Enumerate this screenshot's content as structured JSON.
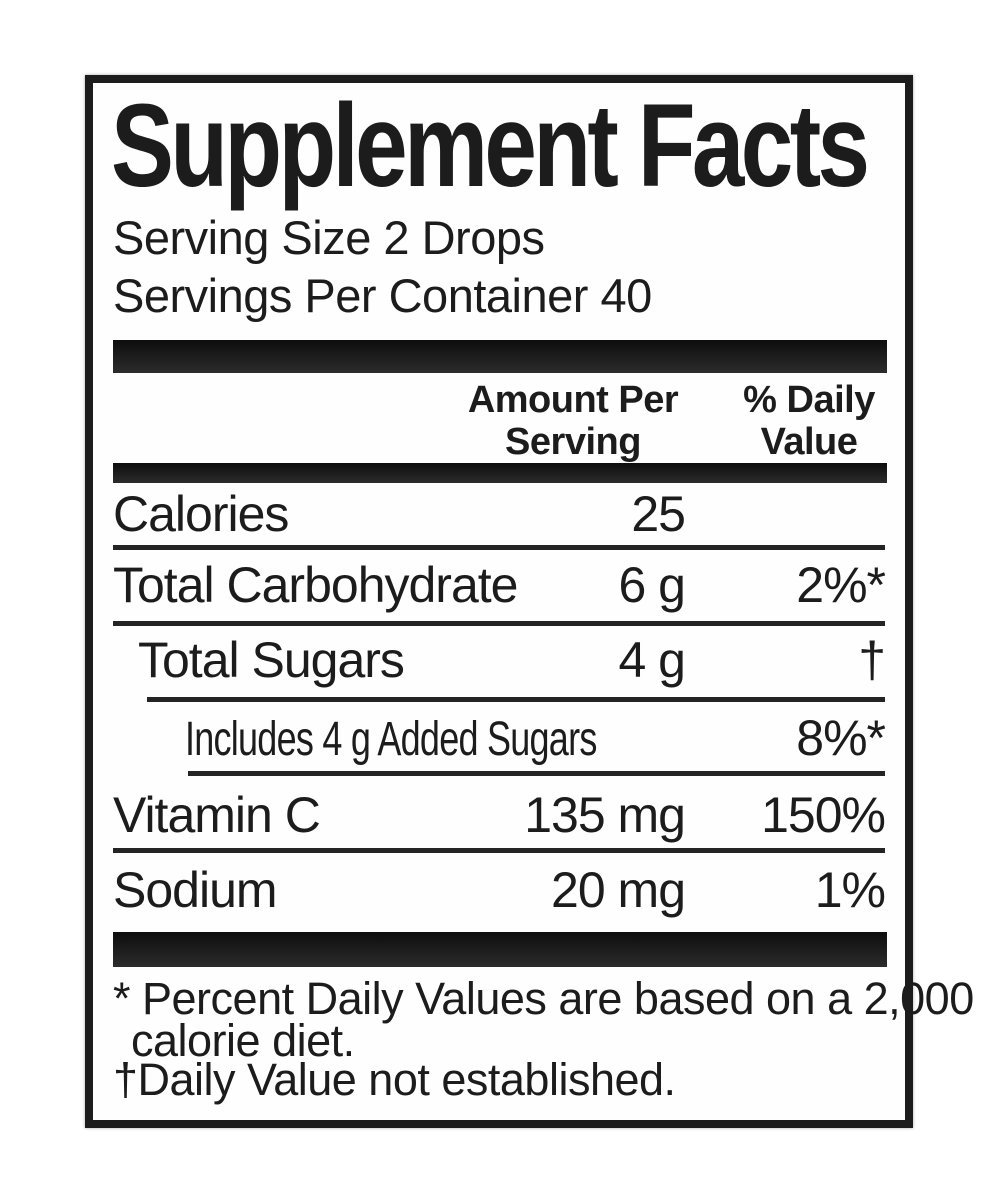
{
  "panel": {
    "title": "Supplement Facts",
    "serving_size": "Serving Size 2 Drops",
    "servings_per_container": "Servings Per Container 40",
    "header": {
      "amount": [
        "Amount Per",
        "Serving"
      ],
      "dv": [
        "% Daily",
        "Value"
      ]
    },
    "rows": [
      {
        "label": "Calories",
        "amount": "25",
        "dv": ""
      },
      {
        "label": "Total Carbohydrate",
        "amount": "6 g",
        "dv": "2%*"
      },
      {
        "label": "Total Sugars",
        "amount": "4 g",
        "dv": "†"
      },
      {
        "label": "Includes 4 g Added Sugars",
        "amount": "",
        "dv": "8%*"
      },
      {
        "label": "Vitamin C",
        "amount": "135 mg",
        "dv": "150%"
      },
      {
        "label": "Sodium",
        "amount": "20 mg",
        "dv": "1%"
      }
    ],
    "footnotes": {
      "line1": "* Percent Daily Values are based on a 2,000",
      "line2": "calorie diet.",
      "line3": "†Daily Value not established."
    },
    "colors": {
      "ink": "#1c1c1c",
      "background": "#ffffff"
    }
  }
}
